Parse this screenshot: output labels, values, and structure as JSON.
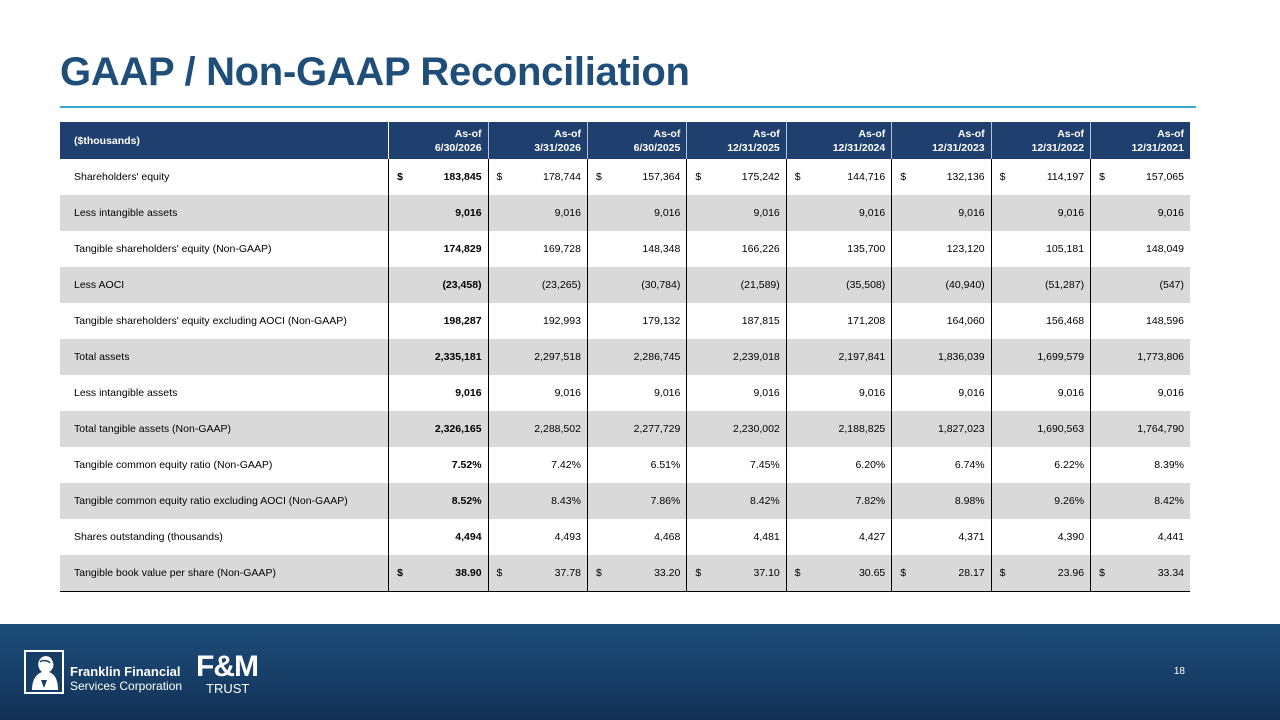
{
  "title": "GAAP / Non-GAAP Reconciliation",
  "table": {
    "label_header": "($thousands)",
    "columns": [
      {
        "line1": "As-of",
        "line2": "6/30/2026"
      },
      {
        "line1": "As-of",
        "line2": "3/31/2026"
      },
      {
        "line1": "As-of",
        "line2": "6/30/2025"
      },
      {
        "line1": "As-of",
        "line2": "12/31/2025"
      },
      {
        "line1": "As-of",
        "line2": "12/31/2024"
      },
      {
        "line1": "As-of",
        "line2": "12/31/2023"
      },
      {
        "line1": "As-of",
        "line2": "12/31/2022"
      },
      {
        "line1": "As-of",
        "line2": "12/31/2021"
      }
    ],
    "rows": [
      {
        "label": "Shareholders' equity",
        "dollar": true,
        "values": [
          "183,845",
          "178,744",
          "157,364",
          "175,242",
          "144,716",
          "132,136",
          "114,197",
          "157,065"
        ]
      },
      {
        "label": "Less intangible assets",
        "dollar": false,
        "values": [
          "9,016",
          "9,016",
          "9,016",
          "9,016",
          "9,016",
          "9,016",
          "9,016",
          "9,016"
        ]
      },
      {
        "label": "Tangible shareholders' equity (Non-GAAP)",
        "dollar": false,
        "values": [
          "174,829",
          "169,728",
          "148,348",
          "166,226",
          "135,700",
          "123,120",
          "105,181",
          "148,049"
        ]
      },
      {
        "label": "Less AOCI",
        "dollar": false,
        "values": [
          "(23,458)",
          "(23,265)",
          "(30,784)",
          "(21,589)",
          "(35,508)",
          "(40,940)",
          "(51,287)",
          "(547)"
        ]
      },
      {
        "label": "Tangible shareholders' equity excluding AOCI (Non-GAAP)",
        "dollar": false,
        "values": [
          "198,287",
          "192,993",
          "179,132",
          "187,815",
          "171,208",
          "164,060",
          "156,468",
          "148,596"
        ]
      },
      {
        "label": "Total assets",
        "dollar": false,
        "values": [
          "2,335,181",
          "2,297,518",
          "2,286,745",
          "2,239,018",
          "2,197,841",
          "1,836,039",
          "1,699,579",
          "1,773,806"
        ]
      },
      {
        "label": "Less intangible assets",
        "dollar": false,
        "values": [
          "9,016",
          "9,016",
          "9,016",
          "9,016",
          "9,016",
          "9,016",
          "9,016",
          "9,016"
        ]
      },
      {
        "label": "Total tangible assets (Non-GAAP)",
        "dollar": false,
        "values": [
          "2,326,165",
          "2,288,502",
          "2,277,729",
          "2,230,002",
          "2,188,825",
          "1,827,023",
          "1,690,563",
          "1,764,790"
        ]
      },
      {
        "label": "Tangible common equity ratio (Non-GAAP)",
        "dollar": false,
        "values": [
          "7.52%",
          "7.42%",
          "6.51%",
          "7.45%",
          "6.20%",
          "6.74%",
          "6.22%",
          "8.39%"
        ]
      },
      {
        "label": "Tangible common equity ratio excluding AOCI (Non-GAAP)",
        "dollar": false,
        "values": [
          "8.52%",
          "8.43%",
          "7.86%",
          "8.42%",
          "7.82%",
          "8.98%",
          "9.26%",
          "8.42%"
        ]
      },
      {
        "label": "Shares outstanding (thousands)",
        "dollar": false,
        "values": [
          "4,494",
          "4,493",
          "4,468",
          "4,481",
          "4,427",
          "4,371",
          "4,390",
          "4,441"
        ]
      },
      {
        "label": "Tangible book value per share (Non-GAAP)",
        "dollar": true,
        "values": [
          "38.90",
          "37.78",
          "33.20",
          "37.10",
          "30.65",
          "28.17",
          "23.96",
          "33.34"
        ]
      }
    ],
    "dollar_sign": "$"
  },
  "footer": {
    "company_line1": "Franklin Financial",
    "company_line2": "Services Corporation",
    "brand": "F&M",
    "brand_sub": "TRUST",
    "page_number": "18"
  },
  "colors": {
    "title": "#1f4e79",
    "rule": "#3aa6d1",
    "header_bg": "#1f3f6e",
    "shaded_row": "#d9d9d9",
    "footer_bg": "#163d66"
  }
}
